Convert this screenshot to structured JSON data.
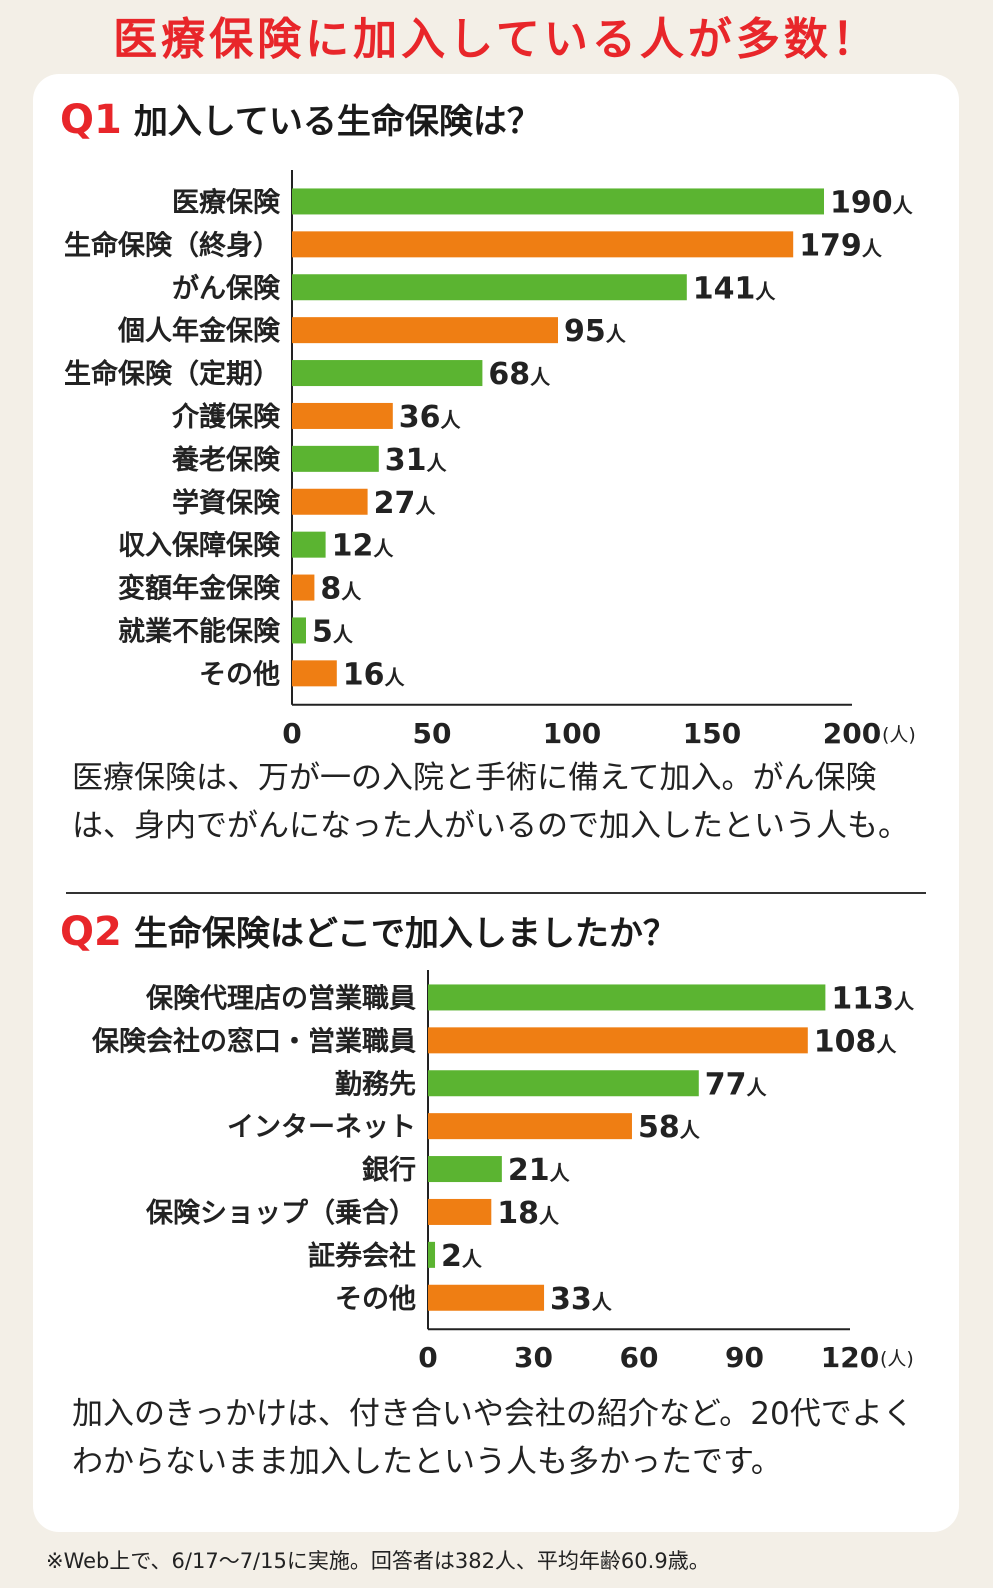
{
  "headline": "医療保険に加入している人が多数！",
  "q1": {
    "num": "Q1",
    "title": "加入している生命保険は？",
    "comment": "医療保険は、万が一の入院と手術に備えて加入。がん保険は、身内でがんになった人がいるので加入したという人も。"
  },
  "q2": {
    "num": "Q2",
    "title": "生命保険はどこで加入しましたか？",
    "comment": "加入のきっかけは、付き合いや会社の紹介など。20代でよくわからないまま加入したという人も多かったです。"
  },
  "footnote": "※Web上で、6/17〜7/15に実施。回答者は382人、平均年齢60.9歳。",
  "colors": {
    "green": "#5bb431",
    "orange": "#ef7e13",
    "red": "#e8262a"
  },
  "chart_data": [
    {
      "type": "bar",
      "orientation": "horizontal",
      "title": "加入している生命保険は？",
      "categories": [
        "医療保険",
        "生命保険（終身）",
        "がん保険",
        "個人年金保険",
        "生命保険（定期）",
        "介護保険",
        "養老保険",
        "学資保険",
        "収入保障保険",
        "変額年金保険",
        "就業不能保険",
        "その他"
      ],
      "values": [
        190,
        179,
        141,
        95,
        68,
        36,
        31,
        27,
        12,
        8,
        5,
        16
      ],
      "value_suffix": "人",
      "xlim": [
        0,
        200
      ],
      "xticks": [
        0,
        50,
        100,
        150,
        200
      ],
      "xunit": "(人)"
    },
    {
      "type": "bar",
      "orientation": "horizontal",
      "title": "生命保険はどこで加入しましたか？",
      "categories": [
        "保険代理店の営業職員",
        "保険会社の窓口・営業職員",
        "勤務先",
        "インターネット",
        "銀行",
        "保険ショップ（乗合）",
        "証券会社",
        "その他"
      ],
      "values": [
        113,
        108,
        77,
        58,
        21,
        18,
        2,
        33
      ],
      "value_suffix": "人",
      "xlim": [
        0,
        120
      ],
      "xticks": [
        0,
        30,
        60,
        90,
        120
      ],
      "xunit": "(人)"
    }
  ]
}
